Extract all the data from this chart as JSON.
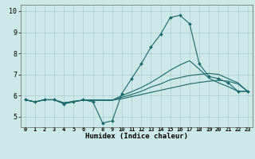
{
  "title": "",
  "xlabel": "Humidex (Indice chaleur)",
  "ylabel": "",
  "background_color": "#cce8e8",
  "grid_color": "#aacccc",
  "line_color": "#1a6868",
  "xlim": [
    -0.5,
    23.5
  ],
  "ylim": [
    4.5,
    10.3
  ],
  "yticks": [
    5,
    6,
    7,
    8,
    9,
    10
  ],
  "xticks": [
    0,
    1,
    2,
    3,
    4,
    5,
    6,
    7,
    8,
    9,
    10,
    11,
    12,
    13,
    14,
    15,
    16,
    17,
    18,
    19,
    20,
    21,
    22,
    23
  ],
  "lines": [
    {
      "x": [
        0,
        1,
        2,
        3,
        4,
        5,
        6,
        7,
        8,
        9,
        10,
        11,
        12,
        13,
        14,
        15,
        16,
        17,
        18,
        19,
        20,
        21,
        22,
        23
      ],
      "y": [
        5.8,
        5.7,
        5.8,
        5.8,
        5.6,
        5.7,
        5.8,
        5.7,
        4.7,
        4.8,
        6.1,
        6.8,
        7.5,
        8.3,
        8.9,
        9.7,
        9.8,
        9.4,
        7.5,
        6.9,
        6.8,
        6.6,
        6.2,
        6.2
      ],
      "marker": true
    },
    {
      "x": [
        0,
        1,
        2,
        3,
        4,
        5,
        6,
        7,
        8,
        9,
        10,
        11,
        12,
        13,
        14,
        15,
        16,
        17,
        18,
        19,
        20,
        21,
        22,
        23
      ],
      "y": [
        5.8,
        5.7,
        5.8,
        5.8,
        5.65,
        5.72,
        5.78,
        5.78,
        5.78,
        5.78,
        5.85,
        5.95,
        6.05,
        6.15,
        6.25,
        6.35,
        6.45,
        6.55,
        6.62,
        6.68,
        6.72,
        6.68,
        6.55,
        6.2
      ],
      "marker": false
    },
    {
      "x": [
        0,
        1,
        2,
        3,
        4,
        5,
        6,
        7,
        8,
        9,
        10,
        11,
        12,
        13,
        14,
        15,
        16,
        17,
        18,
        19,
        20,
        21,
        22,
        23
      ],
      "y": [
        5.8,
        5.7,
        5.8,
        5.8,
        5.65,
        5.72,
        5.78,
        5.78,
        5.78,
        5.78,
        5.92,
        6.05,
        6.2,
        6.4,
        6.55,
        6.75,
        6.85,
        6.95,
        7.0,
        7.05,
        7.0,
        6.8,
        6.6,
        6.2
      ],
      "marker": false
    },
    {
      "x": [
        0,
        1,
        2,
        3,
        4,
        5,
        6,
        7,
        8,
        9,
        10,
        11,
        12,
        13,
        14,
        15,
        16,
        17,
        18,
        19,
        20,
        21,
        22,
        23
      ],
      "y": [
        5.8,
        5.7,
        5.8,
        5.8,
        5.65,
        5.72,
        5.78,
        5.78,
        5.78,
        5.78,
        6.0,
        6.18,
        6.38,
        6.62,
        6.9,
        7.2,
        7.45,
        7.65,
        7.25,
        6.82,
        6.6,
        6.42,
        6.2,
        6.2
      ],
      "marker": false
    }
  ]
}
